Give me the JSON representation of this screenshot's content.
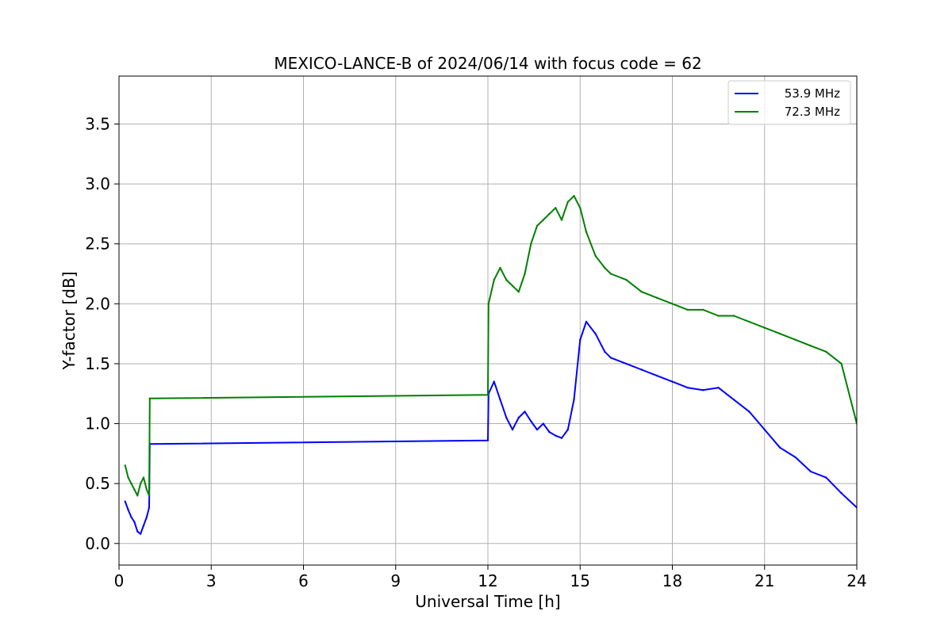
{
  "chart_data": {
    "type": "line",
    "title": "MEXICO-LANCE-B of 2024/06/14 with focus code = 62",
    "xlabel": "Universal Time [h]",
    "ylabel": "Y-factor [dB]",
    "xlim": [
      0,
      24
    ],
    "ylim": [
      -0.18,
      3.9
    ],
    "xticks": [
      0,
      3,
      6,
      9,
      12,
      15,
      18,
      21,
      24
    ],
    "yticks": [
      0.0,
      0.5,
      1.0,
      1.5,
      2.0,
      2.5,
      3.0,
      3.5
    ],
    "xtick_labels": [
      "0",
      "3",
      "6",
      "9",
      "12",
      "15",
      "18",
      "21",
      "24"
    ],
    "ytick_labels": [
      "0.0",
      "0.5",
      "1.0",
      "1.5",
      "2.0",
      "2.5",
      "3.0",
      "3.5"
    ],
    "grid": true,
    "legend_position": "top-right",
    "series": [
      {
        "name": "53.9 MHz",
        "color": "#0000ff",
        "x": [
          0.2,
          0.3,
          0.4,
          0.5,
          0.6,
          0.7,
          0.8,
          0.9,
          0.98,
          1.0,
          12.0,
          12.02,
          12.2,
          12.4,
          12.6,
          12.8,
          13.0,
          13.2,
          13.4,
          13.6,
          13.8,
          14.0,
          14.2,
          14.4,
          14.6,
          14.8,
          15.0,
          15.2,
          15.5,
          15.8,
          16.0,
          16.5,
          17.0,
          17.5,
          18.0,
          18.5,
          19.0,
          19.5,
          20.0,
          20.5,
          21.0,
          21.5,
          22.0,
          22.5,
          23.0,
          23.5,
          24.0
        ],
        "y": [
          0.35,
          0.28,
          0.22,
          0.18,
          0.1,
          0.08,
          0.15,
          0.22,
          0.3,
          0.83,
          0.86,
          1.25,
          1.35,
          1.2,
          1.05,
          0.95,
          1.05,
          1.1,
          1.02,
          0.95,
          1.0,
          0.93,
          0.9,
          0.88,
          0.95,
          1.2,
          1.7,
          1.85,
          1.75,
          1.6,
          1.55,
          1.5,
          1.45,
          1.4,
          1.35,
          1.3,
          1.28,
          1.3,
          1.2,
          1.1,
          0.95,
          0.8,
          0.72,
          0.6,
          0.55,
          0.42,
          0.3
        ]
      },
      {
        "name": "72.3 MHz",
        "color": "#008000",
        "x": [
          0.2,
          0.3,
          0.4,
          0.5,
          0.6,
          0.7,
          0.8,
          0.9,
          0.98,
          1.0,
          12.0,
          12.02,
          12.2,
          12.4,
          12.6,
          12.8,
          13.0,
          13.2,
          13.4,
          13.6,
          13.8,
          14.0,
          14.2,
          14.4,
          14.6,
          14.8,
          15.0,
          15.2,
          15.5,
          15.8,
          16.0,
          16.5,
          17.0,
          17.5,
          18.0,
          18.5,
          19.0,
          19.5,
          20.0,
          20.5,
          21.0,
          21.5,
          22.0,
          22.5,
          23.0,
          23.5,
          24.0
        ],
        "y": [
          0.65,
          0.55,
          0.5,
          0.45,
          0.4,
          0.5,
          0.55,
          0.45,
          0.4,
          1.21,
          1.24,
          2.0,
          2.2,
          2.3,
          2.2,
          2.15,
          2.1,
          2.25,
          2.5,
          2.65,
          2.7,
          2.75,
          2.8,
          2.7,
          2.85,
          2.9,
          2.8,
          2.6,
          2.4,
          2.3,
          2.25,
          2.2,
          2.1,
          2.05,
          2.0,
          1.95,
          1.95,
          1.9,
          1.9,
          1.85,
          1.8,
          1.75,
          1.7,
          1.65,
          1.6,
          1.5,
          1.0
        ]
      }
    ]
  }
}
